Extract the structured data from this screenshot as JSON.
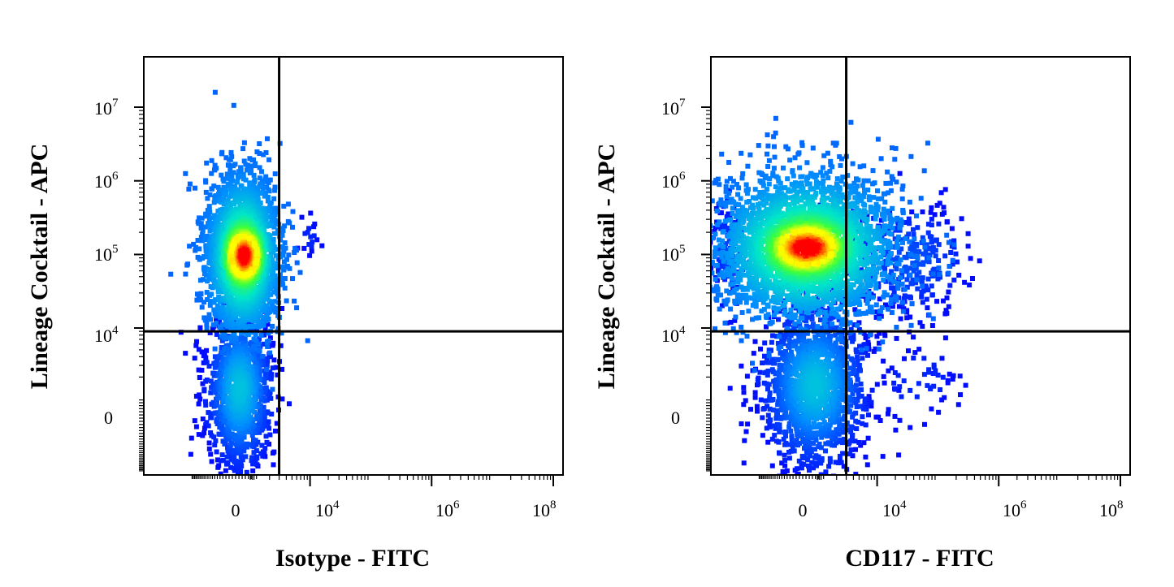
{
  "chart_data": [
    {
      "type": "scatter",
      "subtype": "flow-cytometry-density",
      "xlabel": "Isotype - FITC",
      "ylabel": "Lineage Cocktail - APC",
      "x_scale": "biexponential",
      "y_scale": "biexponential",
      "x_ticks": [
        {
          "base": "0",
          "exp": ""
        },
        {
          "base": "10",
          "exp": "4"
        },
        {
          "base": "10",
          "exp": "6"
        },
        {
          "base": "10",
          "exp": "8"
        }
      ],
      "y_ticks": [
        {
          "base": "10",
          "exp": "7"
        },
        {
          "base": "10",
          "exp": "6"
        },
        {
          "base": "10",
          "exp": "5"
        },
        {
          "base": "10",
          "exp": "4"
        },
        {
          "base": "0",
          "exp": ""
        }
      ],
      "quadrant_gate": {
        "x": 3000,
        "y": 9000
      },
      "populations": [
        {
          "x": 0,
          "y": 100000,
          "description": "main lineage-positive cluster"
        }
      ]
    },
    {
      "type": "scatter",
      "subtype": "flow-cytometry-density",
      "xlabel": "CD117 - FITC",
      "ylabel": "Lineage Cocktail - APC",
      "x_scale": "biexponential",
      "y_scale": "biexponential",
      "x_ticks": [
        {
          "base": "0",
          "exp": ""
        },
        {
          "base": "10",
          "exp": "4"
        },
        {
          "base": "10",
          "exp": "6"
        },
        {
          "base": "10",
          "exp": "8"
        }
      ],
      "y_ticks": [
        {
          "base": "10",
          "exp": "7"
        },
        {
          "base": "10",
          "exp": "6"
        },
        {
          "base": "10",
          "exp": "5"
        },
        {
          "base": "10",
          "exp": "4"
        },
        {
          "base": "0",
          "exp": ""
        }
      ],
      "quadrant_gate": {
        "x": 3000,
        "y": 9000
      },
      "populations": [
        {
          "x": 0,
          "y": 100000,
          "description": "main lineage-positive cluster"
        },
        {
          "x": 30000,
          "y": 100000,
          "description": "CD117-positive lineage-positive events"
        }
      ]
    }
  ],
  "colors": {
    "density_low": "#0000ff",
    "density_mid": "#00ff80",
    "density_high": "#ff0000",
    "gate_line": "#000000"
  }
}
